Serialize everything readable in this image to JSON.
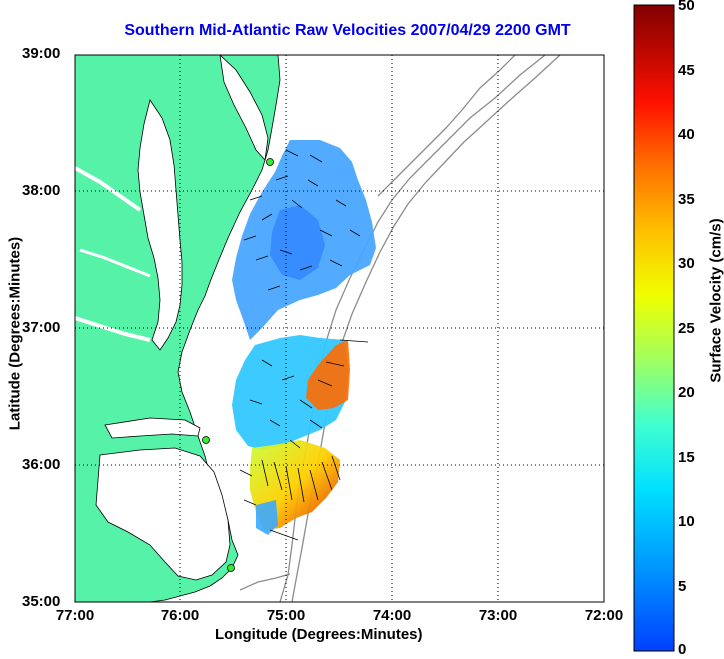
{
  "title": "Southern Mid-Atlantic Raw Velocities 2007/04/29 2200 GMT",
  "xlabel": "Longitude (Degrees:Minutes)",
  "ylabel": "Latitude (Degrees:Minutes)",
  "colorbar_label": "Surface Velocity (cm/s)",
  "x_ticks": [
    "77:00",
    "76:00",
    "75:00",
    "74:00",
    "73:00",
    "72:00"
  ],
  "y_ticks": [
    "39:00",
    "38:00",
    "37:00",
    "36:00",
    "35:00"
  ],
  "colorbar_ticks": [
    "50",
    "45",
    "40",
    "35",
    "30",
    "25",
    "20",
    "15",
    "10",
    "5",
    "0"
  ],
  "colors": {
    "land": "#55f2a8",
    "title": "#0000ee",
    "coast": "#000000",
    "bathymetry": "#8c8c8c",
    "station": "#33ee33"
  },
  "colorbar_range": [
    0,
    50
  ]
}
